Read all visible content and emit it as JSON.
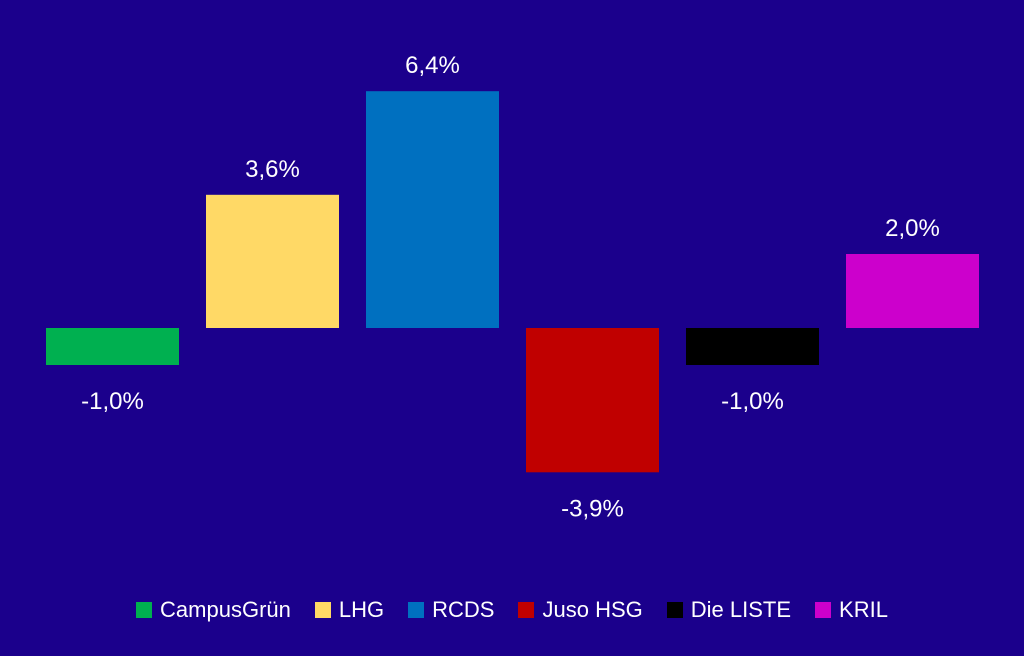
{
  "chart_data": {
    "type": "bar",
    "title": "",
    "xlabel": "",
    "ylabel": "",
    "ylim": [
      -5.0,
      7.0
    ],
    "grid": false,
    "legend_position": "bottom",
    "background_color": "#1b008c",
    "categories": [
      "CampusGrün",
      "LHG",
      "RCDS",
      "Juso HSG",
      "Die LISTE",
      "KRIL"
    ],
    "values": [
      -1.0,
      3.6,
      6.4,
      -3.9,
      -1.0,
      2.0
    ],
    "value_labels": [
      "-1,0%",
      "3,6%",
      "6,4%",
      "-3,9%",
      "-1,0%",
      "2,0%"
    ],
    "colors": [
      "#00b050",
      "#ffd966",
      "#0070c0",
      "#c00000",
      "#000000",
      "#cc00cc"
    ]
  }
}
